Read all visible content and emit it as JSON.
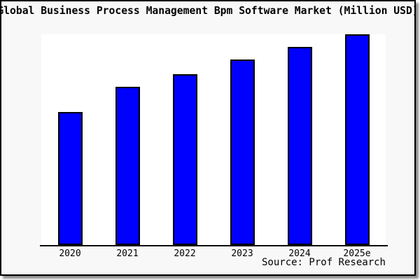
{
  "chart_data": {
    "type": "bar",
    "title": "Global Business Process Management Bpm Software Market (Million USD)",
    "categories": [
      "2020",
      "2021",
      "2022",
      "2023",
      "2024",
      "2025e"
    ],
    "values": [
      63,
      75,
      81,
      88,
      94,
      100
    ],
    "xlabel": "",
    "ylabel": "",
    "ylim": [
      0,
      100
    ],
    "y_axis_note": "no y-axis ticks or gridlines shown; values are estimated relative heights (2025e bar = 100)",
    "grid": false,
    "legend": false,
    "source_note": "Source: Prof Research"
  },
  "colors": {
    "bar_fill": "#0000ff",
    "bar_border": "#000000",
    "frame_background": "#f8f8f8",
    "plot_background": "#ffffff",
    "axis": "#000000",
    "text": "#000000"
  }
}
